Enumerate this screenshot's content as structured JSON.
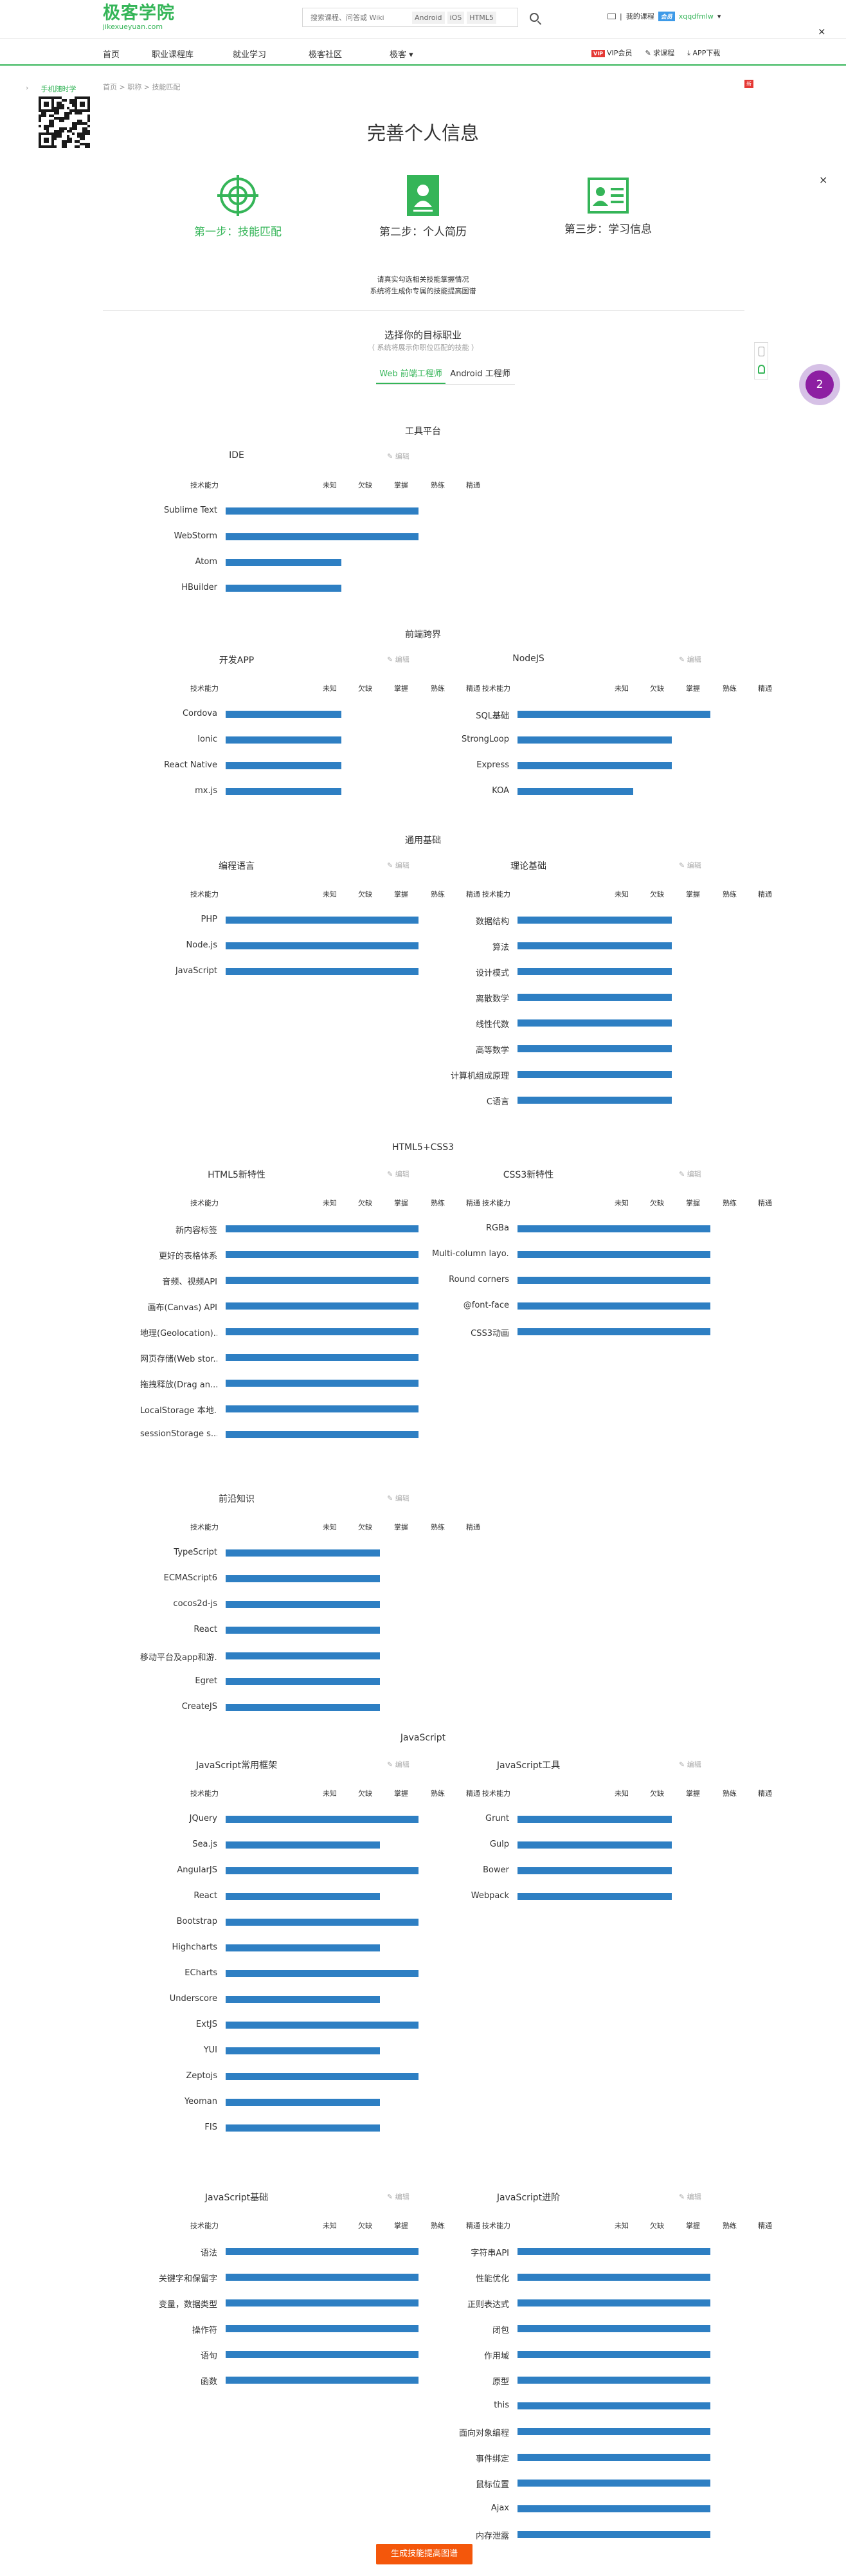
{
  "brand": {
    "name_cn": "极客学院",
    "domain": "jikexueyuan.com"
  },
  "search": {
    "placeholder": "搜索课程、问答或 Wiki",
    "tags": [
      "Android",
      "iOS",
      "HTML5"
    ]
  },
  "user": {
    "my_course": "我的课程",
    "vip": "会员",
    "username": "xqqdfmlw"
  },
  "nav": {
    "items": [
      "首页",
      "职业课程库",
      "就业学习",
      "极客社区",
      "极客"
    ],
    "right": [
      "VIP会员",
      "求课程",
      "APP下载"
    ],
    "vip_tag": "VIP",
    "new_tag": "新"
  },
  "sidebar": {
    "qr_title": "手机随时学"
  },
  "breadcrumb": "首页 > 职称 > 技能匹配",
  "page_title": "完善个人信息",
  "steps": [
    {
      "label": "第一步：技能匹配",
      "active": true,
      "icon": "target-icon"
    },
    {
      "label": "第二步：个人简历",
      "active": false,
      "icon": "resume-icon"
    },
    {
      "label": "第三步：学习信息",
      "active": false,
      "icon": "id-card-icon"
    }
  ],
  "intro": [
    "请真实勾选相关技能掌握情况",
    "系统将生成你专属的技能提高图谱"
  ],
  "choose": {
    "title": "选择你的目标职业",
    "subtitle": "（ 系统将展示你职位匹配的技能 ）"
  },
  "job_tabs": [
    {
      "label": "Web 前端工程师",
      "active": true
    },
    {
      "label": "Android 工程师",
      "active": false
    }
  ],
  "bubble_count": "2",
  "levels": [
    "技术能力",
    "未知",
    "欠缺",
    "掌握",
    "熟练",
    "精通"
  ],
  "edit_label": "编辑",
  "generate_button": "生成技能提高图谱",
  "categories": [
    {
      "title": "工具平台",
      "cards": [
        {
          "title": "IDE",
          "rows": [
            [
              "Sublime Text",
              5
            ],
            [
              "WebStorm",
              5
            ],
            [
              "Atom",
              3
            ],
            [
              "HBuilder",
              3
            ]
          ]
        }
      ]
    },
    {
      "title": "前端跨界",
      "cards": [
        {
          "title": "开发APP",
          "rows": [
            [
              "Cordova",
              3
            ],
            [
              "Ionic",
              3
            ],
            [
              "React Native",
              3
            ],
            [
              "mx.js",
              3
            ]
          ]
        },
        {
          "title": "NodeJS",
          "rows": [
            [
              "SQL基础",
              5
            ],
            [
              "StrongLoop",
              4
            ],
            [
              "Express",
              4
            ],
            [
              "KOA",
              3
            ]
          ]
        }
      ]
    },
    {
      "title": "通用基础",
      "cards": [
        {
          "title": "编程语言",
          "rows": [
            [
              "PHP",
              5
            ],
            [
              "Node.js",
              5
            ],
            [
              "JavaScript",
              5
            ]
          ]
        },
        {
          "title": "理论基础",
          "rows": [
            [
              "数据结构",
              4
            ],
            [
              "算法",
              4
            ],
            [
              "设计模式",
              4
            ],
            [
              "离散数学",
              4
            ],
            [
              "线性代数",
              4
            ],
            [
              "高等数学",
              4
            ],
            [
              "计算机组成原理",
              4
            ],
            [
              "C语言",
              4
            ]
          ]
        }
      ]
    },
    {
      "title": "HTML5+CSS3",
      "cards": [
        {
          "title": "HTML5新特性",
          "rows": [
            [
              "新内容标签",
              5
            ],
            [
              "更好的表格体系",
              5
            ],
            [
              "音频、视频API",
              5
            ],
            [
              "画布(Canvas) API",
              5
            ],
            [
              "地理(Geolocation)...",
              5
            ],
            [
              "网页存储(Web stor...",
              5
            ],
            [
              "拖拽释放(Drag an...",
              5
            ],
            [
              "LocalStorage 本地...",
              5
            ],
            [
              "sessionStorage s...",
              5
            ]
          ]
        },
        {
          "title": "CSS3新特性",
          "rows": [
            [
              "RGBa",
              5
            ],
            [
              "Multi-column layo...",
              5
            ],
            [
              "Round corners",
              5
            ],
            [
              "@font-face",
              5
            ],
            [
              "CSS3动画",
              5
            ]
          ]
        }
      ]
    },
    {
      "title": "",
      "cards": [
        {
          "title": "前沿知识",
          "rows": [
            [
              "TypeScript",
              4
            ],
            [
              "ECMAScript6",
              4
            ],
            [
              "cocos2d-js",
              4
            ],
            [
              "React",
              4
            ],
            [
              "移动平台及app和游...",
              4
            ],
            [
              "Egret",
              4
            ],
            [
              "CreateJS",
              4
            ]
          ]
        }
      ]
    },
    {
      "title": "JavaScript",
      "cards": [
        {
          "title": "JavaScript常用框架",
          "rows": [
            [
              "JQuery",
              5
            ],
            [
              "Sea.js",
              4
            ],
            [
              "AngularJS",
              5
            ],
            [
              "React",
              4
            ],
            [
              "Bootstrap",
              5
            ],
            [
              "Highcharts",
              4
            ],
            [
              "ECharts",
              5
            ],
            [
              "Underscore",
              4
            ],
            [
              "ExtJS",
              5
            ],
            [
              "YUI",
              4
            ],
            [
              "Zeptojs",
              5
            ],
            [
              "Yeoman",
              4
            ],
            [
              "FIS",
              4
            ]
          ]
        },
        {
          "title": "JavaScript工具",
          "rows": [
            [
              "Grunt",
              4
            ],
            [
              "Gulp",
              4
            ],
            [
              "Bower",
              4
            ],
            [
              "Webpack",
              4
            ]
          ]
        }
      ]
    },
    {
      "title": "",
      "cards": [
        {
          "title": "JavaScript基础",
          "rows": [
            [
              "语法",
              5
            ],
            [
              "关键字和保留字",
              5
            ],
            [
              "变量，数据类型",
              5
            ],
            [
              "操作符",
              5
            ],
            [
              "语句",
              5
            ],
            [
              "函数",
              5
            ]
          ]
        },
        {
          "title": "JavaScript进阶",
          "rows": [
            [
              "字符串API",
              5
            ],
            [
              "性能优化",
              5
            ],
            [
              "正则表达式",
              5
            ],
            [
              "闭包",
              5
            ],
            [
              "作用域",
              5
            ],
            [
              "原型",
              5
            ],
            [
              "this",
              5
            ],
            [
              "面向对象编程",
              5
            ],
            [
              "事件绑定",
              5
            ],
            [
              "鼠标位置",
              5
            ],
            [
              "Ajax",
              5
            ],
            [
              "内存泄露",
              5
            ]
          ]
        }
      ]
    }
  ]
}
